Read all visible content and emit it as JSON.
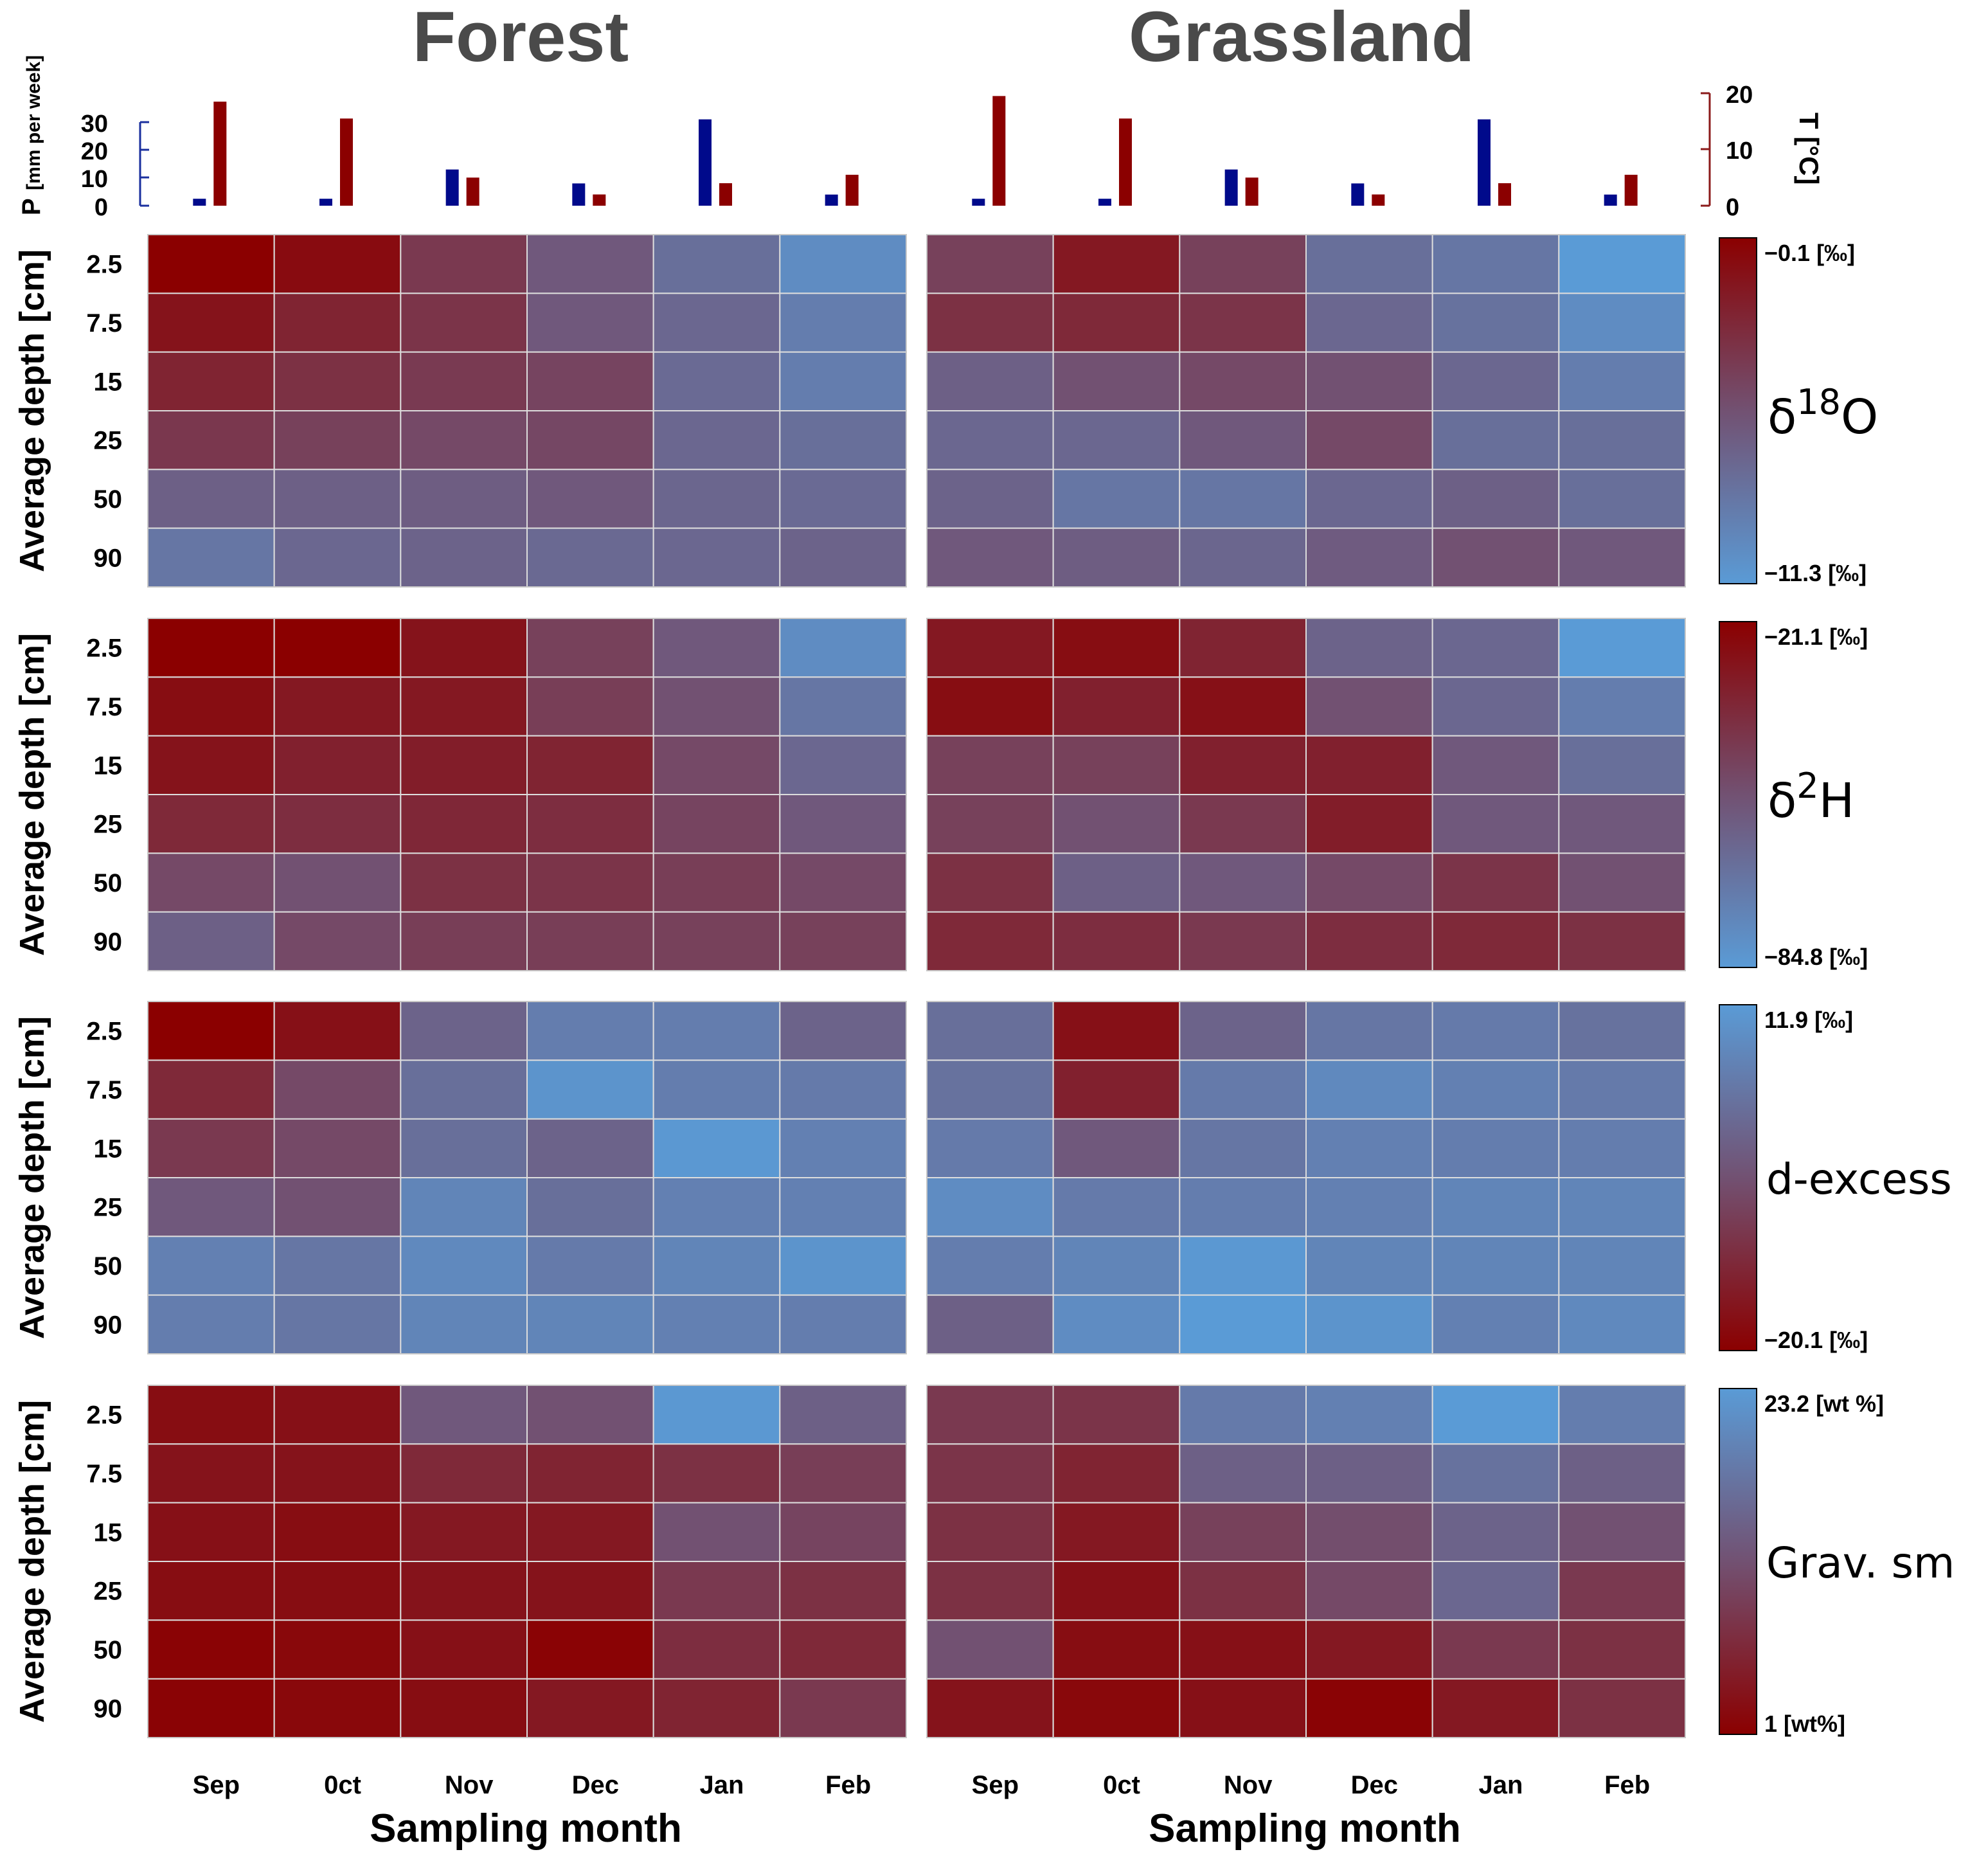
{
  "titles": {
    "forest": "Forest",
    "grassland": "Grassland"
  },
  "xlabel": "Sampling month",
  "ylabel": "Average depth [cm]",
  "precip_axis": {
    "label_main": "P",
    "label_units": "[mm per week]",
    "ticks": [
      "0",
      "10",
      "20",
      "30"
    ],
    "color": "#1a2f9e"
  },
  "temp_axis": {
    "label": "T [°C]",
    "ticks": [
      "0",
      "10",
      "20"
    ],
    "color": "#8b1a1a"
  },
  "chart_data": {
    "type": "heatmap",
    "months": [
      "Sep",
      "0ct",
      "Nov",
      "Dec",
      "Jan",
      "Feb"
    ],
    "depths": [
      "2.5",
      "7.5",
      "15",
      "25",
      "50",
      "90"
    ],
    "color_low": "#5a9bd6",
    "color_high": "#8b0000",
    "weather": {
      "precip_mm_per_week": {
        "forest": [
          2.5,
          2.5,
          13,
          8,
          31,
          4
        ],
        "grassland": [
          2.5,
          2.5,
          13,
          8,
          31,
          4
        ]
      },
      "temperature_c": {
        "forest": [
          18.5,
          15.5,
          5,
          2,
          4,
          5.5
        ],
        "grassland": [
          19.5,
          15.5,
          5,
          2,
          4,
          5.5
        ]
      },
      "precip_color": "#000a8b",
      "temp_color": "#8b0000"
    },
    "panels": [
      {
        "variable": "δ18O",
        "label_main": "δ",
        "label_sup": "18",
        "label_tail": "O",
        "top_label": "−0.1 [‰]",
        "bottom_label": "−11.3 [‰]",
        "top_is_red": true,
        "forest": [
          [
            1.0,
            0.93,
            0.65,
            0.45,
            0.3,
            0.1
          ],
          [
            0.88,
            0.78,
            0.68,
            0.45,
            0.35,
            0.2
          ],
          [
            0.78,
            0.7,
            0.64,
            0.58,
            0.33,
            0.2
          ],
          [
            0.66,
            0.6,
            0.55,
            0.56,
            0.35,
            0.3
          ],
          [
            0.4,
            0.4,
            0.42,
            0.45,
            0.36,
            0.33
          ],
          [
            0.25,
            0.35,
            0.38,
            0.34,
            0.35,
            0.38
          ]
        ],
        "grassland": [
          [
            0.6,
            0.85,
            0.6,
            0.3,
            0.25,
            0.0
          ],
          [
            0.7,
            0.75,
            0.68,
            0.35,
            0.28,
            0.1
          ],
          [
            0.4,
            0.5,
            0.55,
            0.5,
            0.35,
            0.2
          ],
          [
            0.35,
            0.35,
            0.45,
            0.55,
            0.3,
            0.3
          ],
          [
            0.38,
            0.25,
            0.25,
            0.35,
            0.4,
            0.3
          ],
          [
            0.45,
            0.42,
            0.36,
            0.43,
            0.5,
            0.45
          ]
        ]
      },
      {
        "variable": "δ2H",
        "label_main": "δ",
        "label_sup": "2",
        "label_tail": "H",
        "top_label": "−21.1 [‰]",
        "bottom_label": "−84.8 [‰]",
        "top_is_red": true,
        "forest": [
          [
            1.0,
            1.0,
            0.88,
            0.6,
            0.45,
            0.1
          ],
          [
            0.92,
            0.85,
            0.85,
            0.62,
            0.5,
            0.25
          ],
          [
            0.88,
            0.8,
            0.82,
            0.78,
            0.55,
            0.35
          ],
          [
            0.75,
            0.72,
            0.76,
            0.72,
            0.58,
            0.45
          ],
          [
            0.55,
            0.5,
            0.7,
            0.68,
            0.62,
            0.55
          ],
          [
            0.4,
            0.55,
            0.62,
            0.62,
            0.6,
            0.6
          ]
        ],
        "grassland": [
          [
            0.85,
            0.92,
            0.78,
            0.38,
            0.35,
            0.0
          ],
          [
            0.92,
            0.8,
            0.9,
            0.5,
            0.35,
            0.2
          ],
          [
            0.6,
            0.6,
            0.8,
            0.8,
            0.45,
            0.3
          ],
          [
            0.6,
            0.5,
            0.65,
            0.82,
            0.45,
            0.45
          ],
          [
            0.7,
            0.4,
            0.45,
            0.55,
            0.68,
            0.5
          ],
          [
            0.75,
            0.72,
            0.65,
            0.72,
            0.75,
            0.7
          ]
        ]
      },
      {
        "variable": "d-excess",
        "label_text": "d-excess",
        "top_label": "11.9 [‰]",
        "bottom_label": "−20.1 [‰]",
        "top_is_red": false,
        "forest": [
          [
            0.0,
            0.1,
            0.62,
            0.8,
            0.8,
            0.62
          ],
          [
            0.25,
            0.45,
            0.7,
            0.95,
            0.8,
            0.78
          ],
          [
            0.35,
            0.45,
            0.7,
            0.62,
            0.98,
            0.82
          ],
          [
            0.55,
            0.5,
            0.85,
            0.7,
            0.82,
            0.82
          ],
          [
            0.82,
            0.75,
            0.88,
            0.78,
            0.85,
            0.95
          ],
          [
            0.8,
            0.75,
            0.85,
            0.85,
            0.82,
            0.8
          ]
        ],
        "grassland": [
          [
            0.7,
            0.1,
            0.62,
            0.75,
            0.78,
            0.72
          ],
          [
            0.72,
            0.2,
            0.78,
            0.88,
            0.82,
            0.78
          ],
          [
            0.78,
            0.55,
            0.75,
            0.82,
            0.8,
            0.8
          ],
          [
            0.9,
            0.78,
            0.8,
            0.82,
            0.85,
            0.85
          ],
          [
            0.8,
            0.85,
            0.98,
            0.85,
            0.85,
            0.85
          ],
          [
            0.6,
            0.9,
            1.0,
            0.95,
            0.82,
            0.88
          ]
        ]
      },
      {
        "variable": "Grav. sm",
        "label_text": "Grav. sm",
        "top_label": "23.2 [wt %]",
        "bottom_label": "1 [wt%]",
        "top_is_red": false,
        "forest": [
          [
            0.08,
            0.1,
            0.55,
            0.5,
            0.98,
            0.6
          ],
          [
            0.12,
            0.12,
            0.25,
            0.22,
            0.3,
            0.38
          ],
          [
            0.1,
            0.08,
            0.15,
            0.15,
            0.5,
            0.42
          ],
          [
            0.08,
            0.08,
            0.12,
            0.12,
            0.35,
            0.3
          ],
          [
            0.02,
            0.05,
            0.1,
            0.02,
            0.28,
            0.25
          ],
          [
            0.02,
            0.05,
            0.08,
            0.15,
            0.22,
            0.35
          ]
        ],
        "grassland": [
          [
            0.35,
            0.32,
            0.78,
            0.82,
            1.0,
            0.8
          ],
          [
            0.32,
            0.22,
            0.6,
            0.6,
            0.72,
            0.6
          ],
          [
            0.3,
            0.15,
            0.4,
            0.48,
            0.62,
            0.5
          ],
          [
            0.3,
            0.1,
            0.3,
            0.45,
            0.65,
            0.35
          ],
          [
            0.5,
            0.08,
            0.1,
            0.15,
            0.35,
            0.3
          ],
          [
            0.12,
            0.05,
            0.1,
            0.02,
            0.15,
            0.3
          ]
        ]
      }
    ]
  }
}
